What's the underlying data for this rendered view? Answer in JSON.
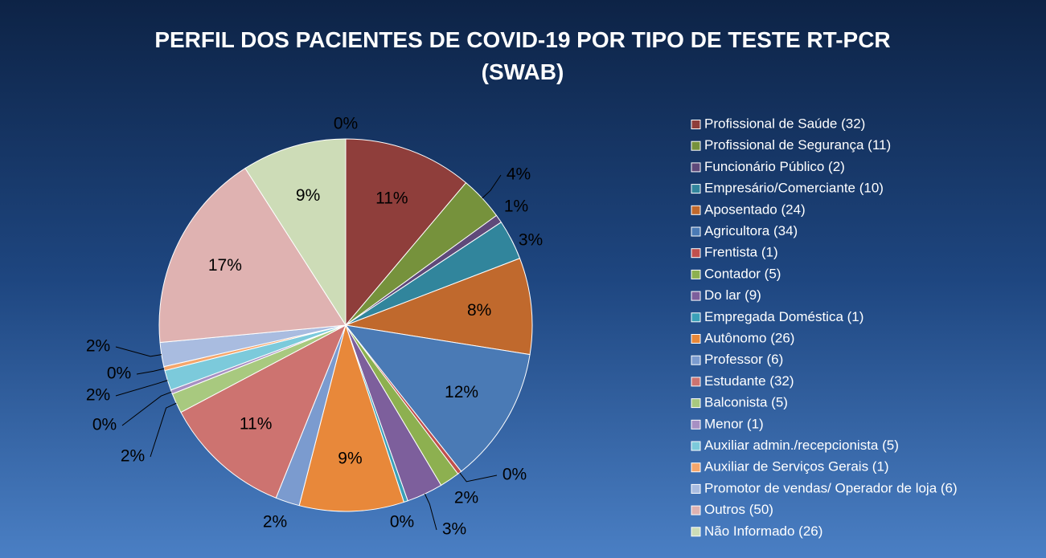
{
  "chart_data": {
    "type": "pie",
    "title": "PERFIL DOS PACIENTES DE COVID-19 POR TIPO DE TESTE RT-PCR (SWAB)",
    "categories": [
      "Profissional de Saúde (32)",
      "Profissional de Segurança (11)",
      "Funcionário Público (2)",
      "Empresário/Comerciante (10)",
      "Aposentado (24)",
      "Agricultora (34)",
      "Frentista (1)",
      "Contador (5)",
      "Do lar (9)",
      "Empregada Doméstica (1)",
      "Autônomo (26)",
      "Professor (6)",
      "Estudante (32)",
      "Balconista (5)",
      "Menor (1)",
      "Auxiliar admin./recepcionista (5)",
      "Auxiliar de Serviços Gerais (1)",
      "Promotor de vendas/ Operador de loja (6)",
      "Outros (50)",
      "Não Informado (26)",
      null
    ],
    "values": [
      11.15,
      3.83,
      0.7,
      3.48,
      8.36,
      11.85,
      0.35,
      1.74,
      3.14,
      0.35,
      9.06,
      2.09,
      11.15,
      1.74,
      0.35,
      1.74,
      0.35,
      2.09,
      17.42,
      9.06,
      0
    ],
    "value_labels": [
      "11%",
      "4%",
      "1%",
      "3%",
      "8%",
      "12%",
      "0%",
      "2%",
      "3%",
      "0%",
      "9%",
      "2%",
      "11%",
      "2%",
      "0%",
      "2%",
      "0%",
      "2%",
      "17%",
      "9%",
      "0%"
    ],
    "colors": [
      "#8f3e3b",
      "#76923c",
      "#5f497a",
      "#31859c",
      "#c0692d",
      "#4a7ab5",
      "#c0504d",
      "#8db050",
      "#7d5f9c",
      "#3aa0b8",
      "#e8883a",
      "#7b9bcf",
      "#cd7370",
      "#a8c97f",
      "#a790c3",
      "#7ccadb",
      "#f5a66b",
      "#a9bce0",
      "#dfb2b1",
      "#cddcb7",
      null
    ]
  }
}
